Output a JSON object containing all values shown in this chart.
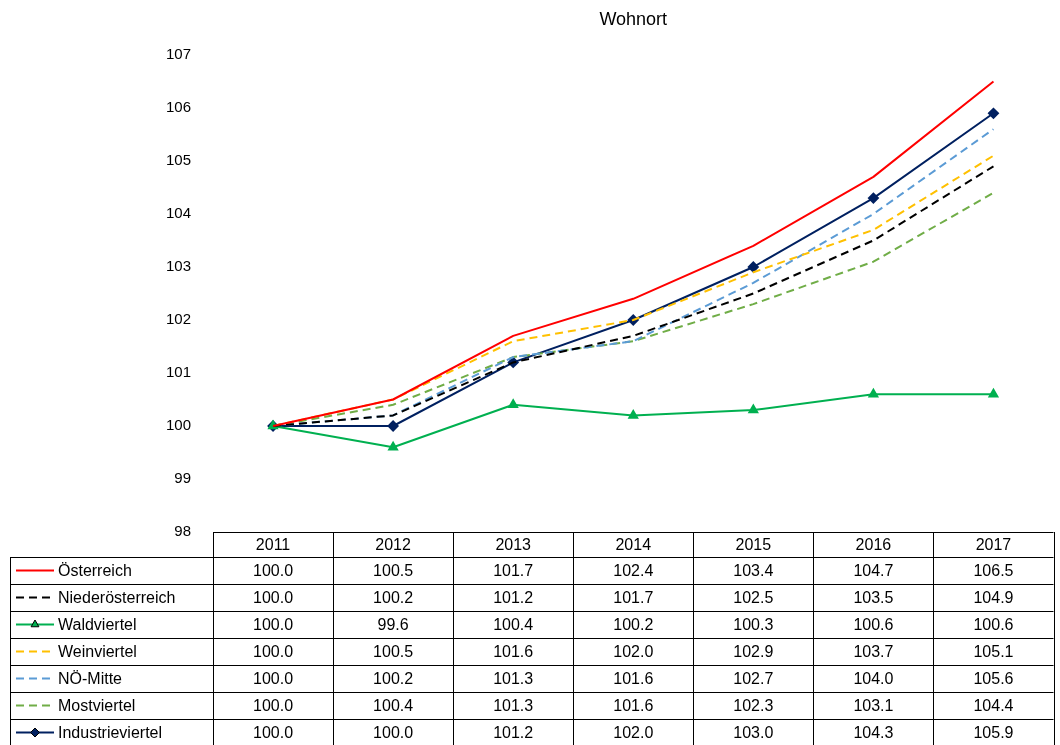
{
  "chart_data": {
    "type": "line",
    "title": "Wohnort",
    "categories": [
      "2011",
      "2012",
      "2013",
      "2014",
      "2015",
      "2016",
      "2017"
    ],
    "ylim": [
      98,
      107
    ],
    "yticks": [
      98,
      99,
      100,
      101,
      102,
      103,
      104,
      105,
      106,
      107
    ],
    "grid": false,
    "legend": "bottom",
    "series": [
      {
        "name": "Österreich",
        "color": "#ff0000",
        "line_style": "solid",
        "marker": "none",
        "values": [
          100.0,
          100.5,
          101.7,
          102.4,
          103.4,
          104.7,
          106.5
        ],
        "value_labels": [
          "100.0",
          "100.5",
          "101.7",
          "102.4",
          "103.4",
          "104.7",
          "106.5"
        ]
      },
      {
        "name": "Niederösterreich",
        "color": "#000000",
        "line_style": "dashed",
        "marker": "none",
        "values": [
          100.0,
          100.2,
          101.2,
          101.7,
          102.5,
          103.5,
          104.9
        ],
        "value_labels": [
          "100.0",
          "100.2",
          "101.2",
          "101.7",
          "102.5",
          "103.5",
          "104.9"
        ]
      },
      {
        "name": "Waldviertel",
        "color": "#00b050",
        "line_style": "solid",
        "marker": "triangle",
        "values": [
          100.0,
          99.6,
          100.4,
          100.2,
          100.3,
          100.6,
          100.6
        ],
        "value_labels": [
          "100.0",
          "99.6",
          "100.4",
          "100.2",
          "100.3",
          "100.6",
          "100.6"
        ]
      },
      {
        "name": "Weinviertel",
        "color": "#ffc000",
        "line_style": "dashed",
        "marker": "none",
        "values": [
          100.0,
          100.5,
          101.6,
          102.0,
          102.9,
          103.7,
          105.1
        ],
        "value_labels": [
          "100.0",
          "100.5",
          "101.6",
          "102.0",
          "102.9",
          "103.7",
          "105.1"
        ]
      },
      {
        "name": "NÖ-Mitte",
        "color": "#5b9bd5",
        "line_style": "dashed",
        "marker": "none",
        "values": [
          100.0,
          100.2,
          101.3,
          101.6,
          102.7,
          104.0,
          105.6
        ],
        "value_labels": [
          "100.0",
          "100.2",
          "101.3",
          "101.6",
          "102.7",
          "104.0",
          "105.6"
        ]
      },
      {
        "name": "Mostviertel",
        "color": "#70ad47",
        "line_style": "dashed",
        "marker": "none",
        "values": [
          100.0,
          100.4,
          101.3,
          101.6,
          102.3,
          103.1,
          104.4
        ],
        "value_labels": [
          "100.0",
          "100.4",
          "101.3",
          "101.6",
          "102.3",
          "103.1",
          "104.4"
        ]
      },
      {
        "name": "Industrieviertel",
        "color": "#002060",
        "line_style": "solid",
        "marker": "diamond",
        "values": [
          100.0,
          100.0,
          101.2,
          102.0,
          103.0,
          104.3,
          105.9
        ],
        "value_labels": [
          "100.0",
          "100.0",
          "101.2",
          "102.0",
          "103.0",
          "104.3",
          "105.9"
        ]
      }
    ]
  }
}
